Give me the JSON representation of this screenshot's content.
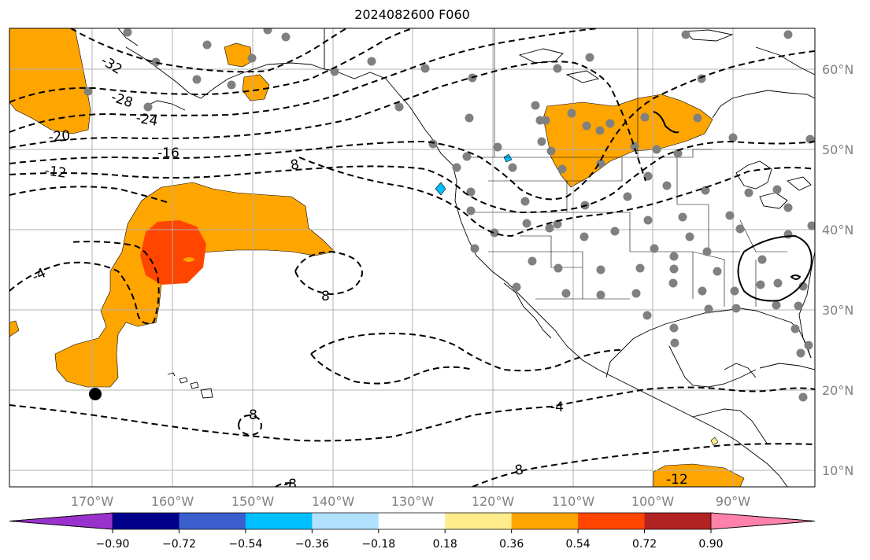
{
  "title": "2024082600 F060",
  "map": {
    "projection": "equirectangular",
    "lon_range": [
      -180,
      -80
    ],
    "lat_range": [
      8,
      65
    ],
    "grid": true,
    "lon_labels": [
      "170°W",
      "160°W",
      "150°W",
      "140°W",
      "130°W",
      "120°W",
      "110°W",
      "100°W",
      "90°W"
    ],
    "lat_labels": [
      "60°N",
      "50°N",
      "40°N",
      "30°N",
      "20°N",
      "10°N"
    ],
    "contour_labels": [
      "-32",
      "-28",
      "-24",
      "-20",
      "-16",
      "-12",
      "-8",
      "-4",
      "8",
      "-8",
      "-4",
      "-8",
      "-12"
    ],
    "station_marker_color": "#808080",
    "highlight_marker_color": "#000000"
  },
  "colorbar": {
    "ticks": [
      "−0.90",
      "−0.72",
      "−0.54",
      "−0.36",
      "−0.18",
      "0.18",
      "0.36",
      "0.54",
      "0.72",
      "0.90"
    ],
    "colors": [
      "#9932cc",
      "#00008b",
      "#3a5fcd",
      "#00bfff",
      "#b0e2ff",
      "#ffffff",
      "#ffec8b",
      "#ffa500",
      "#ff4500",
      "#b22222",
      "#ff82ab"
    ]
  }
}
